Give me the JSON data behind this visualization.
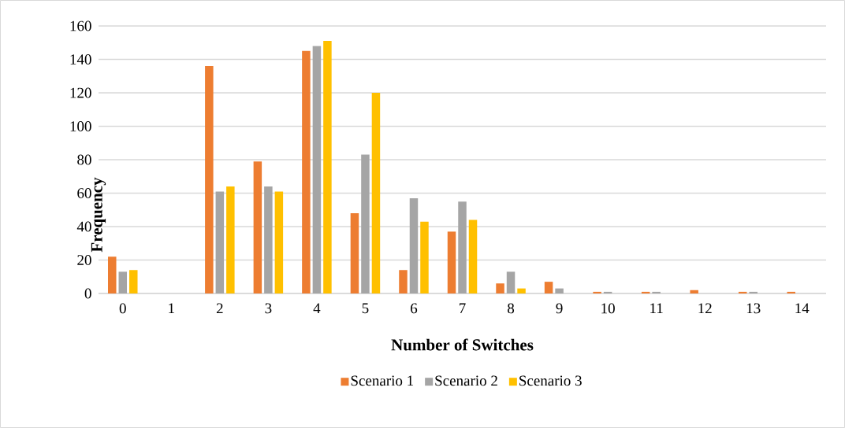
{
  "chart_data": {
    "type": "bar",
    "xlabel": "Number of Switches",
    "ylabel": "Frequency",
    "categories": [
      "0",
      "1",
      "2",
      "3",
      "4",
      "5",
      "6",
      "7",
      "8",
      "9",
      "10",
      "11",
      "12",
      "13",
      "14"
    ],
    "series": [
      {
        "name": "Scenario 1",
        "color": "#ed7d31",
        "values": [
          22,
          0,
          136,
          79,
          145,
          48,
          14,
          37,
          6,
          7,
          1,
          1,
          2,
          1,
          1
        ]
      },
      {
        "name": "Scenario 2",
        "color": "#a5a5a5",
        "values": [
          13,
          0,
          61,
          64,
          148,
          83,
          57,
          55,
          13,
          3,
          1,
          1,
          0,
          1,
          0
        ]
      },
      {
        "name": "Scenario 3",
        "color": "#ffc000",
        "values": [
          14,
          0,
          64,
          61,
          151,
          120,
          43,
          44,
          3,
          0,
          0,
          0,
          0,
          0,
          0
        ]
      }
    ],
    "ylim": [
      0,
      160
    ],
    "yticks": [
      0,
      20,
      40,
      60,
      80,
      100,
      120,
      140,
      160
    ],
    "grid": "y",
    "legend": "bottom"
  }
}
